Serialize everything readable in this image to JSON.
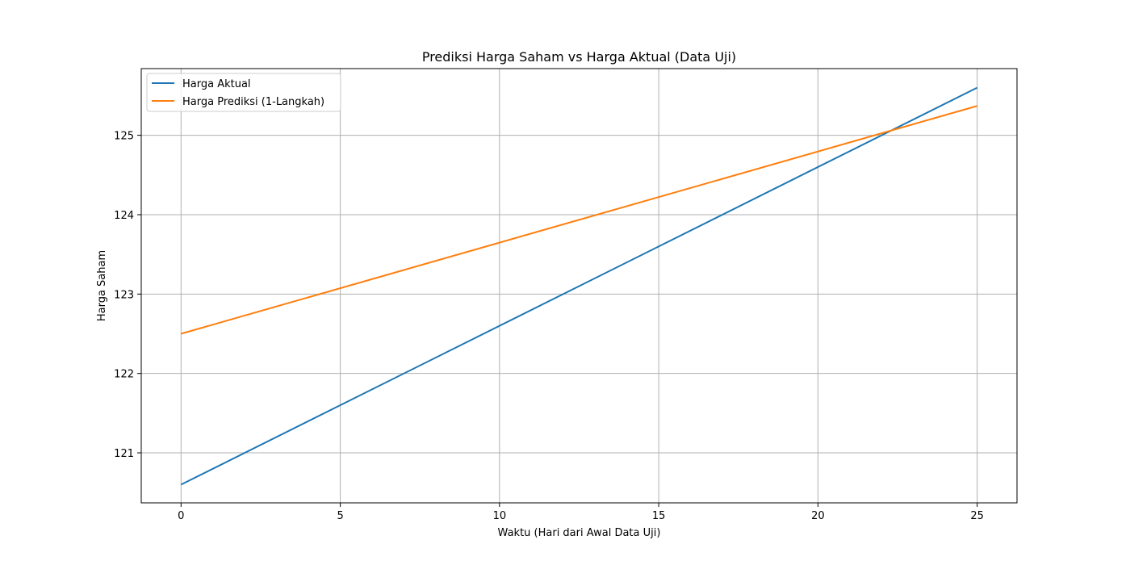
{
  "chart_data": {
    "type": "line",
    "title": "Prediksi Harga Saham vs Harga Aktual (Data Uji)",
    "xlabel": "Waktu (Hari dari Awal Data Uji)",
    "ylabel": "Harga Saham",
    "xlim": [
      -1.25,
      26.25
    ],
    "ylim": [
      120.37,
      125.84
    ],
    "xticks": [
      0,
      5,
      10,
      15,
      20,
      25
    ],
    "yticks": [
      121,
      122,
      123,
      124,
      125
    ],
    "grid": true,
    "legend_position": "top-left",
    "series": [
      {
        "name": "Harga Aktual",
        "color": "#1f77b4",
        "x": [
          0,
          25
        ],
        "y": [
          120.6,
          125.6
        ]
      },
      {
        "name": "Harga Prediksi (1-Langkah)",
        "color": "#ff7f0e",
        "x": [
          0,
          25
        ],
        "y": [
          122.5,
          125.37
        ]
      }
    ]
  }
}
